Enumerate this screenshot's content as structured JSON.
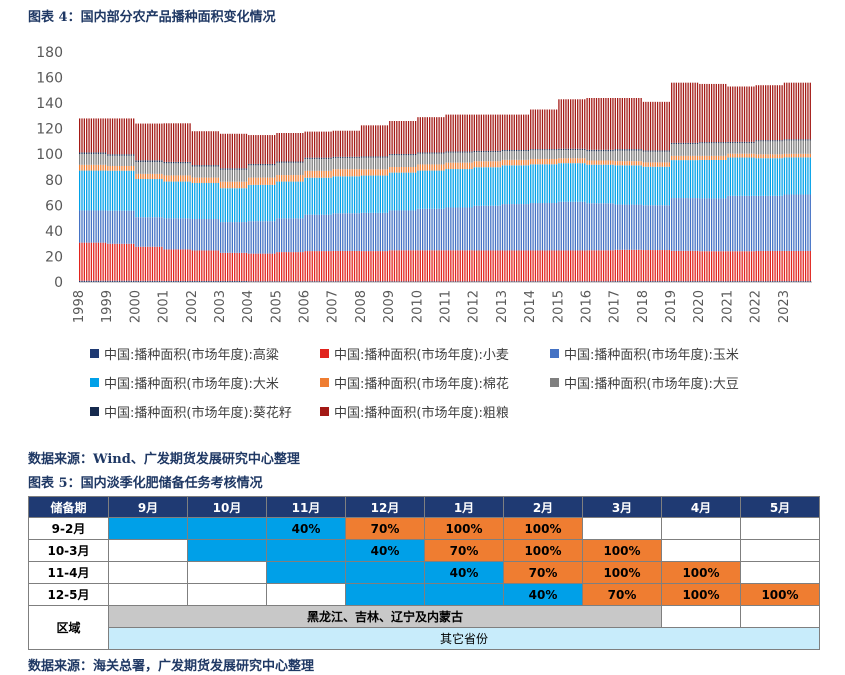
{
  "figure4": {
    "caption": "图表 4：国内部分农产品播种面积变化情况",
    "source": "数据来源：Wind、广发期货发展研究中心整理"
  },
  "figure5": {
    "caption": "图表 5：国内淡季化肥储备任务考核情况",
    "source": "数据来源：海关总署，广发期货发展研究中心整理"
  },
  "chart_data": {
    "type": "bar",
    "stacked": true,
    "title": "",
    "ylim": [
      0,
      180
    ],
    "yticks": [
      0,
      20,
      40,
      60,
      80,
      100,
      120,
      140,
      160,
      180
    ],
    "xticks": [
      "1998",
      "1999",
      "2000",
      "2001",
      "2002",
      "2003",
      "2004",
      "2005",
      "2006",
      "2007",
      "2008",
      "2009",
      "2010",
      "2011",
      "2012",
      "2013",
      "2014",
      "2015",
      "2016",
      "2017",
      "2018",
      "2019",
      "2020",
      "2021",
      "2022",
      "2023"
    ],
    "categories": [
      "1998",
      "1999",
      "2000",
      "2001",
      "2002",
      "2003",
      "2004",
      "2005",
      "2006",
      "2007",
      "2008",
      "2009",
      "2010",
      "2011",
      "2012",
      "2013",
      "2014",
      "2015",
      "2016",
      "2017",
      "2018",
      "2019",
      "2020",
      "2021",
      "2022",
      "2023"
    ],
    "series": [
      {
        "name": "中国:播种面积(市场年度):高粱",
        "color": "#1f3a73",
        "values": [
          1.0,
          1.0,
          0.9,
          0.8,
          0.8,
          0.8,
          0.6,
          0.6,
          0.6,
          0.6,
          0.6,
          0.5,
          0.5,
          0.5,
          0.6,
          0.6,
          0.6,
          0.6,
          0.6,
          0.7,
          0.7,
          0.7,
          0.7,
          0.7,
          0.7,
          0.7
        ]
      },
      {
        "name": "中国:播种面积(市场年度):小麦",
        "color": "#e1231d",
        "values": [
          29.8,
          28.9,
          26.7,
          24.7,
          23.9,
          22.0,
          21.6,
          22.8,
          23.6,
          23.7,
          23.6,
          24.3,
          24.3,
          24.3,
          24.1,
          24.1,
          24.1,
          24.1,
          24.2,
          24.5,
          24.3,
          23.7,
          23.4,
          23.4,
          23.6,
          23.6
        ]
      },
      {
        "name": "中国:播种面积(市场年度):玉米",
        "color": "#4472c4",
        "values": [
          25.2,
          25.9,
          23.1,
          24.3,
          24.6,
          24.1,
          25.4,
          26.4,
          28.5,
          29.5,
          29.9,
          31.2,
          32.5,
          33.5,
          35.0,
          36.3,
          37.1,
          38.1,
          36.8,
          35.4,
          35.0,
          41.3,
          41.3,
          43.3,
          43.1,
          44.2
        ]
      },
      {
        "name": "中国:播种面积(市场年度):大米",
        "color": "#00a0e8",
        "values": [
          31.2,
          31.3,
          29.9,
          28.8,
          28.2,
          26.5,
          28.4,
          28.8,
          28.9,
          28.9,
          29.2,
          29.6,
          29.9,
          30.1,
          30.1,
          30.3,
          30.3,
          30.2,
          30.2,
          30.7,
          30.2,
          29.7,
          30.1,
          30.0,
          29.5,
          29.0
        ]
      },
      {
        "name": "中国:播种面积(市场年度):棉花",
        "color": "#ef7d31",
        "values": [
          4.5,
          3.7,
          4.0,
          4.8,
          4.2,
          5.1,
          5.7,
          5.1,
          5.4,
          5.6,
          4.9,
          4.4,
          4.8,
          5.0,
          4.7,
          4.3,
          4.2,
          3.8,
          3.3,
          3.3,
          3.4,
          3.3,
          3.2,
          3.0,
          3.0,
          2.8
        ]
      },
      {
        "name": "中国:播种面积(市场年度):大豆",
        "color": "#7f7f7f",
        "values": [
          8.5,
          8.0,
          9.3,
          9.5,
          8.7,
          9.3,
          9.6,
          9.6,
          9.3,
          8.8,
          9.1,
          9.2,
          8.5,
          7.9,
          7.2,
          6.8,
          6.8,
          6.5,
          7.2,
          8.2,
          8.4,
          9.3,
          9.9,
          8.4,
          10.2,
          10.5
        ]
      },
      {
        "name": "中国:播种面积(市场年度):葵花籽",
        "color": "#162a4e",
        "values": [
          1.2,
          1.2,
          1.3,
          1.1,
          1.1,
          1.2,
          1.1,
          1.0,
          1.0,
          0.9,
          1.0,
          1.0,
          0.9,
          0.9,
          0.9,
          0.9,
          0.9,
          1.0,
          1.2,
          1.2,
          1.0,
          0.9,
          0.9,
          0.9,
          0.9,
          0.9
        ]
      },
      {
        "name": "中国:播种面积(市场年度):粗粮",
        "color": "#a31915",
        "values": [
          26.6,
          28.0,
          28.8,
          30.2,
          26.5,
          27.0,
          22.6,
          22.3,
          20.4,
          20.4,
          24.3,
          25.8,
          27.6,
          28.8,
          28.4,
          27.7,
          31.0,
          38.7,
          40.5,
          40.0,
          38.0,
          47.1,
          45.5,
          43.3,
          43.0,
          44.3
        ]
      }
    ]
  },
  "table": {
    "corner_label": "储备期",
    "months": [
      "9月",
      "10月",
      "11月",
      "12月",
      "1月",
      "2月",
      "3月",
      "4月",
      "5月"
    ],
    "rows": [
      {
        "label": "9-2月",
        "cells": [
          {
            "t": "",
            "c": "blue"
          },
          {
            "t": "",
            "c": "blue"
          },
          {
            "t": "40%",
            "c": "blue"
          },
          {
            "t": "70%",
            "c": "orange"
          },
          {
            "t": "100%",
            "c": "orange"
          },
          {
            "t": "100%",
            "c": "orange"
          },
          {
            "t": "",
            "c": "white"
          },
          {
            "t": "",
            "c": "white"
          },
          {
            "t": "",
            "c": "white"
          }
        ]
      },
      {
        "label": "10-3月",
        "cells": [
          {
            "t": "",
            "c": "white"
          },
          {
            "t": "",
            "c": "blue"
          },
          {
            "t": "",
            "c": "blue"
          },
          {
            "t": "40%",
            "c": "blue"
          },
          {
            "t": "70%",
            "c": "orange"
          },
          {
            "t": "100%",
            "c": "orange"
          },
          {
            "t": "100%",
            "c": "orange"
          },
          {
            "t": "",
            "c": "white"
          },
          {
            "t": "",
            "c": "white"
          }
        ]
      },
      {
        "label": "11-4月",
        "cells": [
          {
            "t": "",
            "c": "white"
          },
          {
            "t": "",
            "c": "white"
          },
          {
            "t": "",
            "c": "blue"
          },
          {
            "t": "",
            "c": "blue"
          },
          {
            "t": "40%",
            "c": "blue"
          },
          {
            "t": "70%",
            "c": "orange"
          },
          {
            "t": "100%",
            "c": "orange"
          },
          {
            "t": "100%",
            "c": "orange"
          },
          {
            "t": "",
            "c": "white"
          }
        ]
      },
      {
        "label": "12-5月",
        "cells": [
          {
            "t": "",
            "c": "white"
          },
          {
            "t": "",
            "c": "white"
          },
          {
            "t": "",
            "c": "white"
          },
          {
            "t": "",
            "c": "blue"
          },
          {
            "t": "",
            "c": "blue"
          },
          {
            "t": "40%",
            "c": "blue"
          },
          {
            "t": "70%",
            "c": "orange"
          },
          {
            "t": "100%",
            "c": "orange"
          },
          {
            "t": "100%",
            "c": "orange"
          }
        ]
      }
    ],
    "region_label": "区域",
    "region_north": "黑龙江、吉林、辽宁及内蒙古",
    "region_other": "其它省份"
  }
}
